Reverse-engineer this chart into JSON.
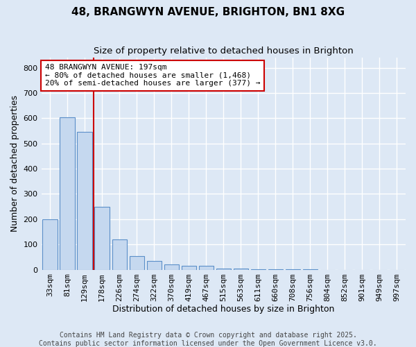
{
  "title": "48, BRANGWYN AVENUE, BRIGHTON, BN1 8XG",
  "subtitle": "Size of property relative to detached houses in Brighton",
  "xlabel": "Distribution of detached houses by size in Brighton",
  "ylabel": "Number of detached properties",
  "categories": [
    "33sqm",
    "81sqm",
    "129sqm",
    "178sqm",
    "226sqm",
    "274sqm",
    "322sqm",
    "370sqm",
    "419sqm",
    "467sqm",
    "515sqm",
    "563sqm",
    "611sqm",
    "660sqm",
    "708sqm",
    "756sqm",
    "804sqm",
    "852sqm",
    "901sqm",
    "949sqm",
    "997sqm"
  ],
  "values": [
    200,
    605,
    545,
    248,
    120,
    55,
    35,
    20,
    15,
    14,
    4,
    3,
    2,
    2,
    1,
    1,
    0,
    0,
    0,
    0,
    0
  ],
  "bar_color": "#c5d8ef",
  "bar_edge_color": "#5b8fc9",
  "vline_x": 2.5,
  "vline_color": "#cc0000",
  "annotation_line1": "48 BRANGWYN AVENUE: 197sqm",
  "annotation_line2": "← 80% of detached houses are smaller (1,468)",
  "annotation_line3": "20% of semi-detached houses are larger (377) →",
  "annotation_box_facecolor": "#ffffff",
  "annotation_box_edgecolor": "#cc0000",
  "ylim": [
    0,
    840
  ],
  "yticks": [
    0,
    100,
    200,
    300,
    400,
    500,
    600,
    700,
    800
  ],
  "background_color": "#dde8f5",
  "grid_color": "#ffffff",
  "footer_line1": "Contains HM Land Registry data © Crown copyright and database right 2025.",
  "footer_line2": "Contains public sector information licensed under the Open Government Licence v3.0.",
  "title_fontsize": 11,
  "subtitle_fontsize": 9.5,
  "axis_label_fontsize": 9,
  "tick_fontsize": 8,
  "footer_fontsize": 7
}
